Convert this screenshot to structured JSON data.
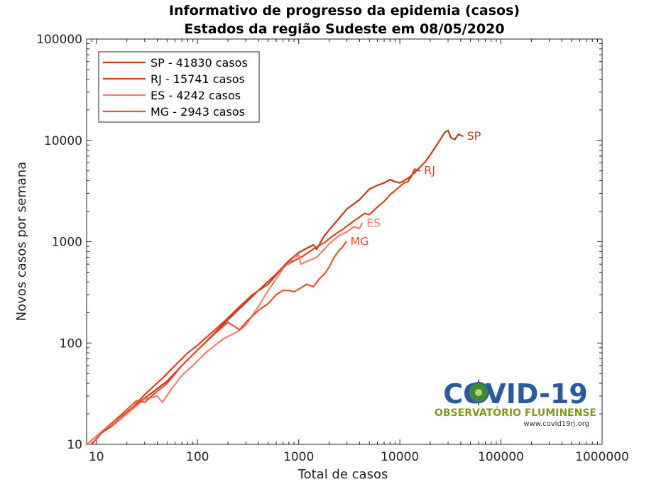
{
  "chart_data": {
    "type": "line",
    "title": "Informativo de progresso da epidemia (casos)",
    "subtitle": "Estados da região Sudeste  em 08/05/2020",
    "xlabel": "Total de casos",
    "ylabel": "Novos casos por semana",
    "xscale": "log",
    "yscale": "log",
    "xlim": [
      8,
      1000000
    ],
    "ylim": [
      10,
      100000
    ],
    "xticks": [
      "10",
      "100",
      "1000",
      "10000",
      "100000",
      "1000000"
    ],
    "yticks": [
      "10",
      "100",
      "1000",
      "10000",
      "100000"
    ],
    "grid": false,
    "legend_position": "top-left",
    "series": [
      {
        "name": "SP",
        "legend": "SP - 41830 casos",
        "end_label": "SP",
        "color": "#c0391b",
        "points": [
          [
            9,
            10
          ],
          [
            12,
            14
          ],
          [
            18,
            19
          ],
          [
            25,
            25
          ],
          [
            35,
            32
          ],
          [
            50,
            42
          ],
          [
            70,
            60
          ],
          [
            100,
            85
          ],
          [
            150,
            128
          ],
          [
            200,
            170
          ],
          [
            300,
            250
          ],
          [
            400,
            330
          ],
          [
            600,
            480
          ],
          [
            800,
            650
          ],
          [
            1000,
            780
          ],
          [
            1200,
            860
          ],
          [
            1400,
            930
          ],
          [
            1500,
            840
          ],
          [
            1800,
            1150
          ],
          [
            2500,
            1700
          ],
          [
            3000,
            2100
          ],
          [
            4000,
            2600
          ],
          [
            5000,
            3300
          ],
          [
            6000,
            3600
          ],
          [
            7000,
            3800
          ],
          [
            8000,
            4100
          ],
          [
            9000,
            3900
          ],
          [
            10000,
            3800
          ],
          [
            12000,
            4200
          ],
          [
            14000,
            4800
          ],
          [
            16000,
            5500
          ],
          [
            18000,
            6200
          ],
          [
            20000,
            7200
          ],
          [
            24000,
            9500
          ],
          [
            28000,
            12000
          ],
          [
            30000,
            12500
          ],
          [
            32000,
            10600
          ],
          [
            35000,
            10200
          ],
          [
            38000,
            11500
          ],
          [
            41830,
            11000
          ]
        ]
      },
      {
        "name": "RJ",
        "legend": "RJ - 15741 casos",
        "end_label": "RJ",
        "color": "#d9441d",
        "points": [
          [
            8,
            10
          ],
          [
            10,
            12
          ],
          [
            14,
            15
          ],
          [
            20,
            20
          ],
          [
            30,
            31
          ],
          [
            45,
            45
          ],
          [
            60,
            60
          ],
          [
            80,
            80
          ],
          [
            100,
            95
          ],
          [
            130,
            120
          ],
          [
            180,
            160
          ],
          [
            250,
            220
          ],
          [
            350,
            300
          ],
          [
            500,
            380
          ],
          [
            700,
            560
          ],
          [
            900,
            650
          ],
          [
            1100,
            720
          ],
          [
            1400,
            850
          ],
          [
            1800,
            980
          ],
          [
            2200,
            1150
          ],
          [
            2800,
            1350
          ],
          [
            3500,
            1600
          ],
          [
            4000,
            1750
          ],
          [
            4500,
            1900
          ],
          [
            5000,
            1850
          ],
          [
            6000,
            2200
          ],
          [
            7000,
            2500
          ],
          [
            8000,
            2900
          ],
          [
            9000,
            3200
          ],
          [
            10000,
            3500
          ],
          [
            11000,
            3800
          ],
          [
            12000,
            3900
          ],
          [
            13000,
            4400
          ],
          [
            14000,
            5200
          ],
          [
            15741,
            5000
          ]
        ]
      },
      {
        "name": "ES",
        "legend": "ES - 4242 casos",
        "end_label": "ES",
        "color": "#f08070",
        "points": [
          [
            8,
            10
          ],
          [
            12,
            14
          ],
          [
            20,
            20
          ],
          [
            30,
            28
          ],
          [
            40,
            30
          ],
          [
            45,
            26
          ],
          [
            55,
            35
          ],
          [
            70,
            48
          ],
          [
            90,
            60
          ],
          [
            120,
            80
          ],
          [
            180,
            110
          ],
          [
            250,
            130
          ],
          [
            300,
            150
          ],
          [
            400,
            230
          ],
          [
            500,
            330
          ],
          [
            600,
            430
          ],
          [
            700,
            540
          ],
          [
            900,
            700
          ],
          [
            1000,
            740
          ],
          [
            1050,
            600
          ],
          [
            1200,
            640
          ],
          [
            1300,
            660
          ],
          [
            1500,
            700
          ],
          [
            2000,
            950
          ],
          [
            2500,
            1150
          ],
          [
            3000,
            1250
          ],
          [
            3500,
            1400
          ],
          [
            4000,
            1350
          ],
          [
            4242,
            1520
          ]
        ]
      },
      {
        "name": "MG",
        "legend": "MG - 2943 casos",
        "end_label": "MG",
        "color": "#e8502e",
        "points": [
          [
            9,
            10
          ],
          [
            12,
            14
          ],
          [
            18,
            20
          ],
          [
            25,
            27
          ],
          [
            30,
            26
          ],
          [
            35,
            30
          ],
          [
            50,
            40
          ],
          [
            70,
            60
          ],
          [
            100,
            85
          ],
          [
            150,
            125
          ],
          [
            200,
            160
          ],
          [
            260,
            135
          ],
          [
            300,
            160
          ],
          [
            400,
            210
          ],
          [
            500,
            245
          ],
          [
            600,
            300
          ],
          [
            700,
            330
          ],
          [
            800,
            330
          ],
          [
            900,
            320
          ],
          [
            1000,
            340
          ],
          [
            1200,
            380
          ],
          [
            1400,
            360
          ],
          [
            1600,
            430
          ],
          [
            1800,
            480
          ],
          [
            2000,
            560
          ],
          [
            2200,
            680
          ],
          [
            2500,
            820
          ],
          [
            2700,
            880
          ],
          [
            2943,
            1000
          ]
        ]
      }
    ]
  },
  "logo": {
    "title": "COVID-19",
    "subtitle": "OBSERVATÓRIO FLUMINENSE",
    "url": "www.covid19rj.org"
  }
}
